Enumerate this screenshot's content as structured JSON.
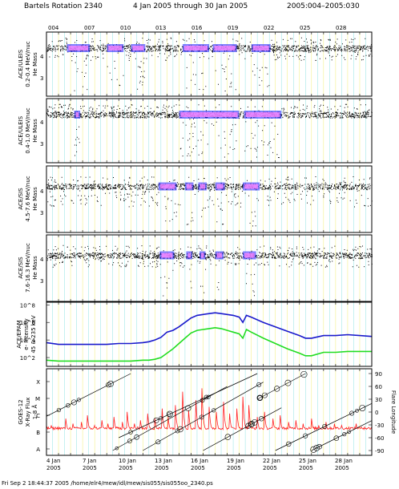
{
  "header": {
    "rotation": "Bartels Rotation 2340",
    "range": "4 Jan 2005 through 30 Jan 2005",
    "doy_range": "2005:004–2005:030"
  },
  "top_day_ticks": [
    "004",
    "007",
    "010",
    "013",
    "016",
    "019",
    "022",
    "025",
    "028"
  ],
  "date_ticks": [
    {
      "day": "4 Jan",
      "year": "2005"
    },
    {
      "day": "7 Jan",
      "year": "2005"
    },
    {
      "day": "10 Jan",
      "year": "2005"
    },
    {
      "day": "13 Jan",
      "year": "2005"
    },
    {
      "day": "16 Jan",
      "year": "2005"
    },
    {
      "day": "19 Jan",
      "year": "2005"
    },
    {
      "day": "22 Jan",
      "year": "2005"
    },
    {
      "day": "25 Jan",
      "year": "2005"
    },
    {
      "day": "28 Jan",
      "year": "2005"
    }
  ],
  "footer": "Fri Sep  2 18:44:37 2005   /home/elr4/mew/idl/mew/sis055/sis055oo_2340.ps",
  "colors": {
    "axis": "#000000",
    "grid_yellow": "#e8e200",
    "grid_cyan": "#33cccc",
    "density_low": "#1a1aff",
    "density_high": "#ff88ff",
    "electron_high": "#1a1acc",
    "electron_low": "#22dd22",
    "xray_flux": "#ff2020"
  },
  "chart_data": [
    {
      "type": "scatter",
      "panel": "ACE/ULEIS 0.2-0.4 MeV/nuc",
      "ylabel": [
        "ACE/ULEIS",
        "0.2-0.4 MeV/nuc",
        "He Mass"
      ],
      "yticks": [
        "4",
        "3"
      ],
      "xlim": [
        4,
        31
      ],
      "ylim": [
        2.2,
        4.6
      ],
      "band_center": 4.0,
      "dense_intervals": [
        [
          5.7,
          7.6
        ],
        [
          9.0,
          10.4
        ],
        [
          11.0,
          12.2
        ],
        [
          15.3,
          17.5
        ],
        [
          17.8,
          19.8
        ],
        [
          21.0,
          22.6
        ]
      ],
      "scatter_level": 0.5
    },
    {
      "type": "scatter",
      "panel": "ACE/ULEIS 0.4-1.0 MeV/nuc",
      "ylabel": [
        "ACE/ULEIS",
        "0.4-1.0 MeV/nuc",
        "He Mass"
      ],
      "yticks": [
        "4",
        "3"
      ],
      "xlim": [
        4,
        31
      ],
      "ylim": [
        2.2,
        4.6
      ],
      "band_center": 4.0,
      "dense_intervals": [
        [
          6.3,
          6.8
        ],
        [
          15.0,
          20.0
        ],
        [
          20.4,
          23.5
        ]
      ],
      "scatter_level": 0.3
    },
    {
      "type": "scatter",
      "panel": "ACE/SIS 4.5-7.6 MeV/nuc",
      "ylabel": [
        "ACE/SIS",
        "4.5-7.6 MeV/nuc",
        "He Mass"
      ],
      "yticks": [
        "4",
        "3"
      ],
      "xlim": [
        4,
        31
      ],
      "ylim": [
        2.2,
        4.8
      ],
      "band_center": 4.0,
      "dense_intervals": [
        [
          13.3,
          14.8
        ],
        [
          15.5,
          16.2
        ],
        [
          16.6,
          17.3
        ],
        [
          18.0,
          18.8
        ],
        [
          20.3,
          21.7
        ]
      ],
      "scatter_level": 0.7
    },
    {
      "type": "scatter",
      "panel": "ACE/SIS 7.6-16.3 MeV/nuc",
      "ylabel": [
        "ACE/SIS",
        "7.6-16.3 MeV/nuc",
        "He Mass"
      ],
      "yticks": [
        "4",
        "3"
      ],
      "xlim": [
        4,
        31
      ],
      "ylim": [
        2.2,
        4.8
      ],
      "band_center": 4.0,
      "dense_intervals": [
        [
          13.4,
          14.6
        ],
        [
          15.6,
          16.1
        ],
        [
          16.7,
          17.2
        ],
        [
          18.0,
          18.7
        ],
        [
          20.3,
          21.4
        ]
      ],
      "scatter_level": 0.5
    },
    {
      "type": "line",
      "panel": "ACE/EPAM electron intensity",
      "ylabel": [
        "ACE/EPAM",
        "e- Intensity",
        "45 & 235 keV"
      ],
      "yticks": [
        "10^8",
        "10^6",
        "10^4",
        "10^2"
      ],
      "log_scale": true,
      "ylim_log10": [
        1,
        8.3
      ],
      "xlim": [
        4,
        31
      ],
      "series": [
        {
          "label": "45 keV",
          "color": "#1a1acc",
          "x": [
            4,
            5,
            6,
            7,
            8,
            9,
            10,
            11,
            12,
            12.5,
            13,
            13.5,
            14,
            14.5,
            15,
            15.5,
            16,
            16.5,
            17,
            17.5,
            18,
            18.5,
            19,
            19.5,
            20,
            20.3,
            20.6,
            21,
            22,
            23,
            24,
            25,
            25.5,
            26,
            27,
            28,
            29,
            30,
            31
          ],
          "y_log10": [
            3.7,
            3.5,
            3.5,
            3.5,
            3.5,
            3.5,
            3.6,
            3.6,
            3.7,
            3.8,
            4.0,
            4.3,
            4.9,
            5.1,
            5.5,
            6.0,
            6.5,
            6.8,
            6.9,
            7.0,
            7.1,
            7.0,
            6.9,
            6.8,
            6.6,
            6.0,
            6.8,
            6.6,
            6.0,
            5.5,
            5.0,
            4.5,
            4.2,
            4.2,
            4.5,
            4.5,
            4.6,
            4.5,
            4.4
          ]
        },
        {
          "label": "235 keV",
          "color": "#22dd22",
          "x": [
            4,
            5,
            6,
            7,
            8,
            9,
            10,
            11,
            12,
            12.5,
            13,
            13.5,
            14,
            14.5,
            15,
            15.5,
            16,
            16.5,
            17,
            17.5,
            18,
            18.5,
            19,
            19.5,
            20,
            20.3,
            20.6,
            21,
            22,
            23,
            24,
            25,
            25.5,
            26,
            27,
            28,
            29,
            30,
            31
          ],
          "y_log10": [
            1.7,
            1.6,
            1.6,
            1.6,
            1.6,
            1.6,
            1.6,
            1.6,
            1.7,
            1.7,
            1.8,
            2.0,
            2.5,
            3.0,
            3.6,
            4.2,
            4.8,
            5.1,
            5.2,
            5.3,
            5.4,
            5.3,
            5.1,
            4.9,
            4.7,
            4.2,
            5.2,
            4.9,
            4.2,
            3.6,
            3.0,
            2.5,
            2.2,
            2.2,
            2.6,
            2.6,
            2.7,
            2.7,
            2.7
          ]
        }
      ]
    },
    {
      "type": "line",
      "panel": "GOES-12 X-Ray Flux",
      "ylabel": [
        "GOES-12",
        "X-Ray Flux",
        "1-8 Å"
      ],
      "yticks": [
        "X",
        "M",
        "C",
        "B",
        "A"
      ],
      "right_label": "Flare Longitude",
      "right_ticks": [
        "90",
        "60",
        "30",
        "0",
        "-30",
        "-60",
        "-90"
      ],
      "xlim": [
        4,
        31
      ],
      "baseline_class": "B",
      "flare_days": [
        4.4,
        5.0,
        5.6,
        6.2,
        6.9,
        7.4,
        8.0,
        8.6,
        9.1,
        9.6,
        10.3,
        10.7,
        11.3,
        11.8,
        12.4,
        13.0,
        13.6,
        14.1,
        14.7,
        15.3,
        15.8,
        16.4,
        16.9,
        17.5,
        18.1,
        18.7,
        19.2,
        19.8,
        20.3,
        20.8,
        21.5,
        22.1,
        22.8,
        23.4,
        24.1,
        24.7,
        25.3,
        26.0,
        26.6,
        27.2,
        27.9,
        28.5,
        29.1,
        29.7,
        30.4
      ],
      "flare_class_log": [
        0.4,
        0.3,
        0.8,
        0.5,
        0.6,
        1.0,
        0.4,
        0.7,
        0.5,
        0.9,
        0.6,
        1.2,
        0.5,
        0.7,
        1.1,
        0.8,
        1.4,
        0.9,
        1.6,
        2.4,
        1.3,
        1.9,
        2.6,
        1.5,
        1.2,
        1.8,
        1.1,
        1.4,
        2.1,
        1.6,
        0.9,
        1.2,
        0.8,
        1.0,
        0.6,
        0.7,
        0.5,
        0.8,
        0.4,
        0.6,
        0.5,
        0.4,
        0.3,
        0.5,
        0.3
      ],
      "flare_longitude_tracks": [
        {
          "start_day": 4.0,
          "start_lon": -10,
          "end_day": 11.0,
          "end_lon": 90
        },
        {
          "start_day": 9.5,
          "start_lon": -90,
          "end_day": 19.0,
          "end_lon": 60
        },
        {
          "start_day": 10.0,
          "start_lon": -60,
          "end_day": 21.5,
          "end_lon": 90
        },
        {
          "start_day": 12.0,
          "start_lon": -90,
          "end_day": 22.0,
          "end_lon": 70
        },
        {
          "start_day": 17.0,
          "start_lon": -90,
          "end_day": 23.5,
          "end_lon": 10
        },
        {
          "start_day": 21.5,
          "start_lon": 30,
          "end_day": 25.5,
          "end_lon": 90
        },
        {
          "start_day": 23.0,
          "start_lon": -90,
          "end_day": 31.0,
          "end_lon": 20
        },
        {
          "start_day": 26.0,
          "start_lon": -90,
          "end_day": 31.0,
          "end_lon": -20
        }
      ]
    }
  ]
}
